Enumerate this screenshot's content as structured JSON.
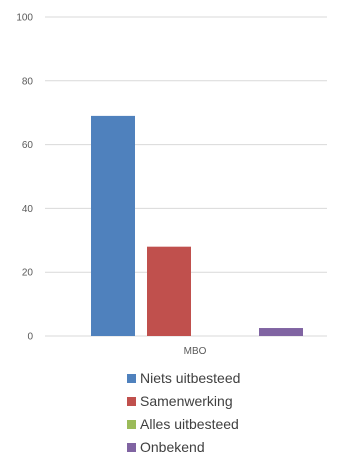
{
  "chart_data": {
    "type": "bar",
    "categories": [
      "MBO"
    ],
    "series": [
      {
        "name": "Niets uitbesteed",
        "values": [
          69
        ],
        "color": "#4f81bd"
      },
      {
        "name": "Samenwerking",
        "values": [
          28
        ],
        "color": "#c0504d"
      },
      {
        "name": "Alles uitbesteed",
        "values": [
          0
        ],
        "color": "#9bbb59"
      },
      {
        "name": "Onbekend",
        "values": [
          2.5
        ],
        "color": "#8064a2"
      }
    ],
    "title": "",
    "xlabel": "",
    "ylabel": "",
    "ylim": [
      0,
      100
    ],
    "yticks": [
      "0",
      "20",
      "40",
      "60",
      "80",
      "100"
    ],
    "grid": true,
    "legend_position": "bottom"
  }
}
